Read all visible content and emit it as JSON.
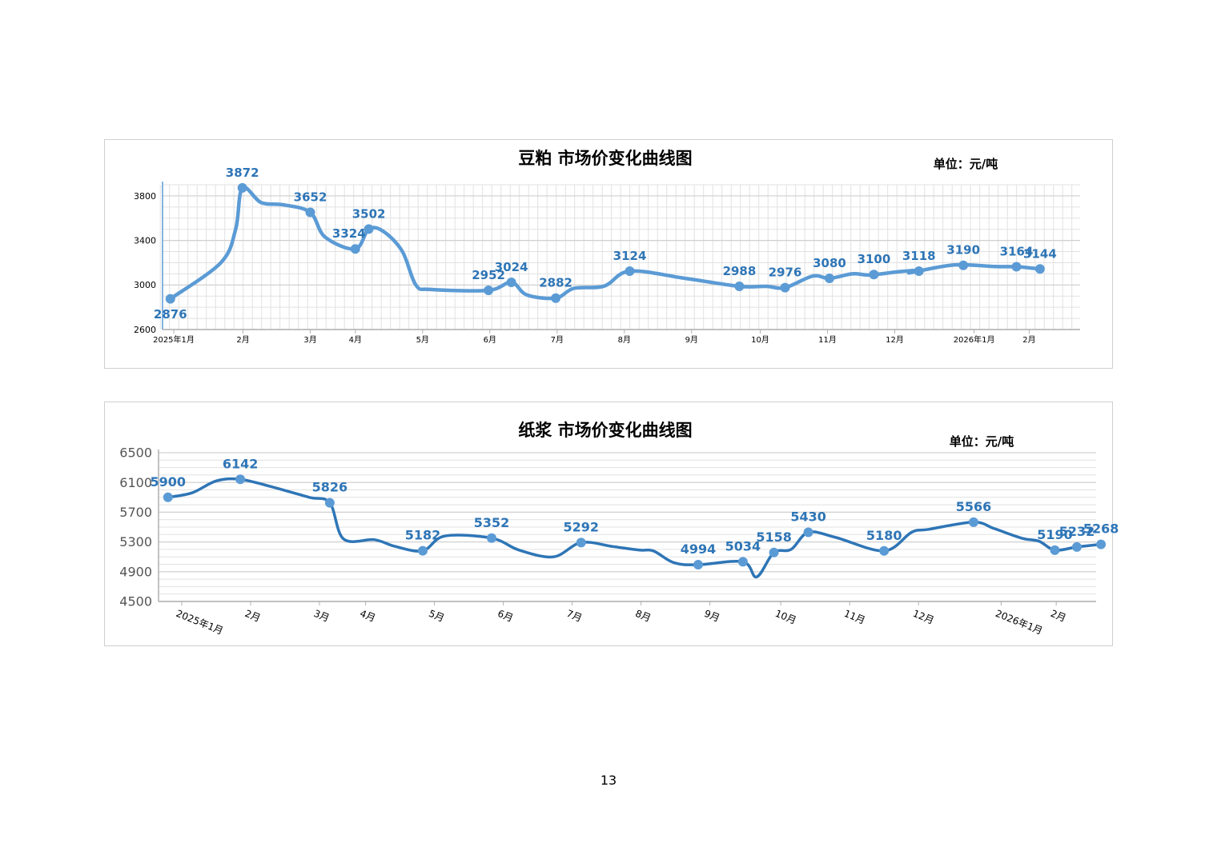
{
  "page": {
    "number": "13"
  },
  "chart_data": [
    {
      "type": "line",
      "title": "豆粕 市场价变化曲线图",
      "unit_label": "单位：元/吨",
      "xlabel": "",
      "ylabel": "",
      "ylim": [
        2600,
        3900
      ],
      "yticks": [
        2600,
        3000,
        3400,
        3800
      ],
      "grid": true,
      "month_ticks": [
        {
          "label": "2025年1月",
          "t": 0
        },
        {
          "label": "2月",
          "t": 1.03
        },
        {
          "label": "3月",
          "t": 2.03
        },
        {
          "label": "4月",
          "t": 2.7
        },
        {
          "label": "5月",
          "t": 3.7
        },
        {
          "label": "6月",
          "t": 4.7
        },
        {
          "label": "7月",
          "t": 5.7
        },
        {
          "label": "8月",
          "t": 6.7
        },
        {
          "label": "9月",
          "t": 7.7
        },
        {
          "label": "10月",
          "t": 8.72
        },
        {
          "label": "11月",
          "t": 9.72
        },
        {
          "label": "12月",
          "t": 10.72
        },
        {
          "label": "2026年1月",
          "t": 11.9
        },
        {
          "label": "2月",
          "t": 12.72
        }
      ],
      "series": [
        {
          "color": "#5b9bd5",
          "label_color": "#2e75b6",
          "x": [
            -0.05,
            0.7,
            0.92,
            1.02,
            1.3,
            1.63,
            2.03,
            2.25,
            2.7,
            2.9,
            3.12,
            3.4,
            3.6,
            3.82,
            4.68,
            5.02,
            5.25,
            5.68,
            5.95,
            6.4,
            6.78,
            7.6,
            8.41,
            8.81,
            9.09,
            9.5,
            9.75,
            10.09,
            10.35,
            10.76,
            11.05,
            10.95,
            11.6,
            12.22,
            12.53,
            12.88
          ],
          "y": [
            2876,
            3200,
            3500,
            3872,
            3740,
            3720,
            3652,
            3430,
            3324,
            3502,
            3480,
            3300,
            3000,
            2960,
            2952,
            3024,
            2910,
            2882,
            2970,
            2990,
            3124,
            3060,
            2988,
            2988,
            2976,
            3080,
            3060,
            3100,
            3090,
            3118,
            3130,
            3110,
            3180,
            3165,
            3164,
            3144
          ],
          "points": [
            {
              "t": -0.05,
              "v": 2876,
              "label": "2876",
              "pos": "below"
            },
            {
              "t": 1.02,
              "v": 3872,
              "label": "3872",
              "pos": "above"
            },
            {
              "t": 2.03,
              "v": 3652,
              "label": "3652",
              "pos": "above"
            },
            {
              "t": 2.7,
              "v": 3324,
              "label": "3324",
              "pos": "above-left"
            },
            {
              "t": 2.9,
              "v": 3502,
              "label": "3502",
              "pos": "above"
            },
            {
              "t": 4.68,
              "v": 2952,
              "label": "2952",
              "pos": "above"
            },
            {
              "t": 5.02,
              "v": 3024,
              "label": "3024",
              "pos": "above"
            },
            {
              "t": 5.68,
              "v": 2882,
              "label": "2882",
              "pos": "above"
            },
            {
              "t": 6.78,
              "v": 3124,
              "label": "3124",
              "pos": "above"
            },
            {
              "t": 8.41,
              "v": 2988,
              "label": "2988",
              "pos": "above"
            },
            {
              "t": 9.09,
              "v": 2976,
              "label": "2976",
              "pos": "above"
            },
            {
              "t": 9.75,
              "v": 3080,
              "label": "3080",
              "pos": "above"
            },
            {
              "t": 10.41,
              "v": 3100,
              "label": "3100",
              "pos": "above"
            },
            {
              "t": 11.08,
              "v": 3118,
              "label": "3118",
              "pos": "above"
            },
            {
              "t": 11.74,
              "v": 3190,
              "label": "3190",
              "pos": "above"
            },
            {
              "t": 12.53,
              "v": 3164,
              "label": "3164",
              "pos": "above"
            },
            {
              "t": 12.88,
              "v": 3144,
              "label": "3144",
              "pos": "above"
            }
          ]
        }
      ]
    },
    {
      "type": "line",
      "title": "纸浆 市场价变化曲线图",
      "unit_label": "单位：元/吨",
      "xlabel": "",
      "ylabel": "",
      "ylim": [
        4500,
        6500
      ],
      "yticks": [
        4500,
        4900,
        5300,
        5700,
        6100,
        6500
      ],
      "grid": true,
      "month_ticks": [
        {
          "label": "2025年1月",
          "t": 0
        },
        {
          "label": "2月",
          "t": 1
        },
        {
          "label": "3月",
          "t": 2
        },
        {
          "label": "4月",
          "t": 2.67
        },
        {
          "label": "5月",
          "t": 3.67
        },
        {
          "label": "6月",
          "t": 4.67
        },
        {
          "label": "7月",
          "t": 5.67
        },
        {
          "label": "8月",
          "t": 6.67
        },
        {
          "label": "9月",
          "t": 7.67
        },
        {
          "label": "10月",
          "t": 8.7
        },
        {
          "label": "11月",
          "t": 9.7
        },
        {
          "label": "12月",
          "t": 10.7
        },
        {
          "label": "2026年1月",
          "t": 11.9
        },
        {
          "label": "2月",
          "t": 12.7
        }
      ],
      "series": [
        {
          "color": "#2e75b6",
          "label_color": "#2e75b6",
          "x": [
            -0.2,
            0.15,
            0.5,
            0.85,
            1.35,
            1.85,
            2.15,
            2.35,
            2.8,
            3.1,
            3.5,
            3.82,
            4.5,
            4.9,
            5.4,
            5.8,
            6.25,
            6.65,
            6.85,
            7.15,
            7.5,
            8.15,
            8.35,
            8.6,
            8.85,
            9.1,
            9.5,
            10.2,
            10.6,
            10.85,
            11.5,
            11.8,
            12.2,
            12.45,
            12.68,
            13.0,
            13.35
          ],
          "y": [
            5900,
            5960,
            6120,
            6142,
            6030,
            5900,
            5826,
            5340,
            5330,
            5240,
            5182,
            5380,
            5352,
            5190,
            5100,
            5292,
            5240,
            5190,
            5180,
            5020,
            4994,
            5034,
            4830,
            5158,
            5200,
            5430,
            5360,
            5180,
            5430,
            5470,
            5566,
            5480,
            5350,
            5310,
            5190,
            5232,
            5268
          ],
          "points": [
            {
              "t": -0.2,
              "v": 5900,
              "label": "5900",
              "pos": "above"
            },
            {
              "t": 0.85,
              "v": 6142,
              "label": "6142",
              "pos": "above"
            },
            {
              "t": 2.15,
              "v": 5826,
              "label": "5826",
              "pos": "above"
            },
            {
              "t": 3.5,
              "v": 5182,
              "label": "5182",
              "pos": "above"
            },
            {
              "t": 4.5,
              "v": 5352,
              "label": "5352",
              "pos": "above"
            },
            {
              "t": 5.8,
              "v": 5292,
              "label": "5292",
              "pos": "above"
            },
            {
              "t": 7.5,
              "v": 4994,
              "label": "4994",
              "pos": "above"
            },
            {
              "t": 8.15,
              "v": 5034,
              "label": "5034",
              "pos": "above"
            },
            {
              "t": 8.6,
              "v": 5158,
              "label": "5158",
              "pos": "above"
            },
            {
              "t": 9.1,
              "v": 5430,
              "label": "5430",
              "pos": "above"
            },
            {
              "t": 10.2,
              "v": 5180,
              "label": "5180",
              "pos": "above"
            },
            {
              "t": 11.5,
              "v": 5566,
              "label": "5566",
              "pos": "above"
            },
            {
              "t": 12.68,
              "v": 5190,
              "label": "5190",
              "pos": "above"
            },
            {
              "t": 13.0,
              "v": 5232,
              "label": "5232",
              "pos": "above"
            },
            {
              "t": 13.35,
              "v": 5268,
              "label": "5268",
              "pos": "above"
            }
          ]
        }
      ]
    }
  ]
}
